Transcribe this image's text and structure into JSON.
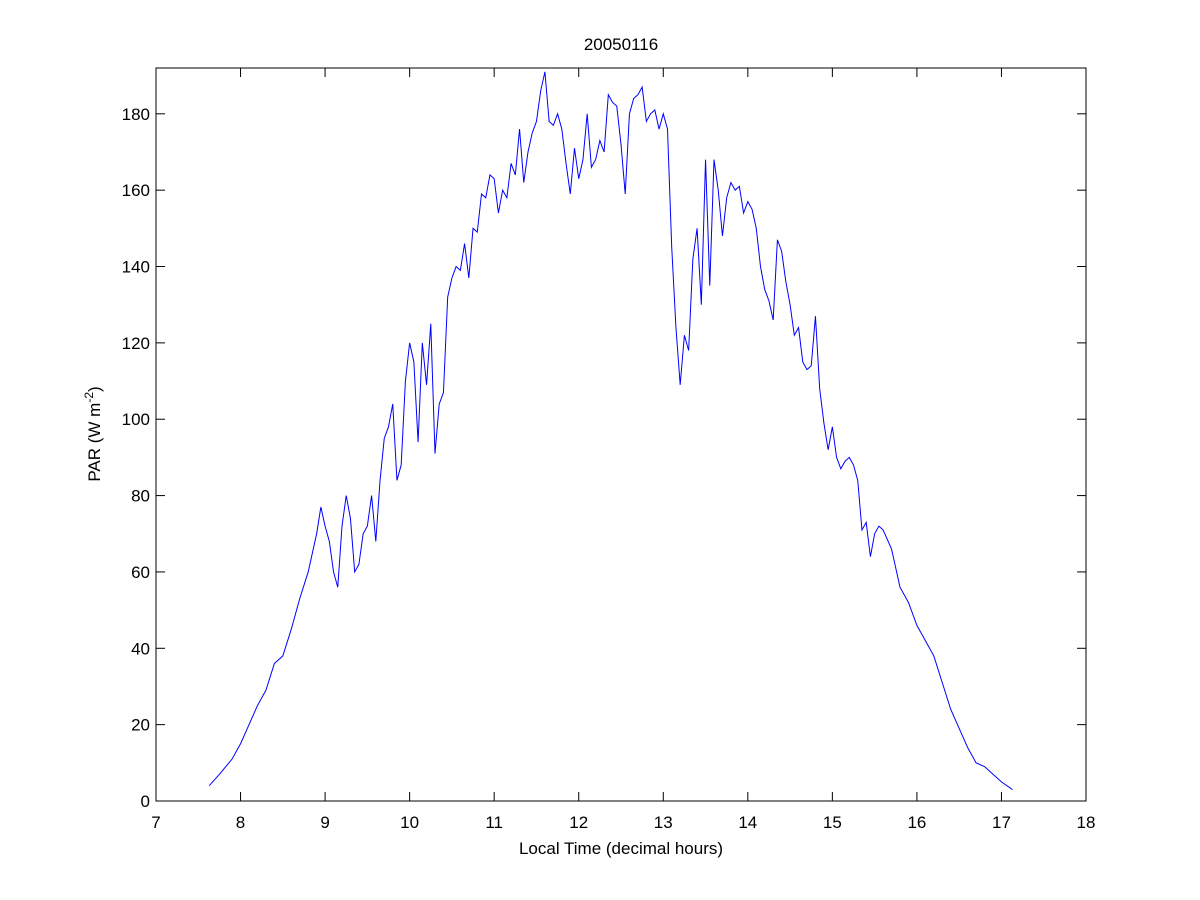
{
  "chart_data": {
    "type": "line",
    "title": "20050116",
    "x_label": "Local Time (decimal hours)",
    "y_label_parts": [
      "PAR (W m",
      "-2",
      ")"
    ],
    "x": [
      7.63,
      7.75,
      7.9,
      8.0,
      8.1,
      8.2,
      8.3,
      8.4,
      8.5,
      8.6,
      8.7,
      8.8,
      8.9,
      8.95,
      9.0,
      9.05,
      9.1,
      9.15,
      9.2,
      9.25,
      9.3,
      9.35,
      9.4,
      9.45,
      9.5,
      9.55,
      9.6,
      9.65,
      9.7,
      9.75,
      9.8,
      9.85,
      9.9,
      9.95,
      10.0,
      10.05,
      10.1,
      10.15,
      10.2,
      10.25,
      10.3,
      10.35,
      10.4,
      10.45,
      10.5,
      10.55,
      10.6,
      10.65,
      10.7,
      10.75,
      10.8,
      10.85,
      10.9,
      10.95,
      11.0,
      11.05,
      11.1,
      11.15,
      11.2,
      11.25,
      11.3,
      11.35,
      11.4,
      11.45,
      11.5,
      11.55,
      11.6,
      11.65,
      11.7,
      11.75,
      11.8,
      11.85,
      11.9,
      11.95,
      12.0,
      12.05,
      12.1,
      12.15,
      12.2,
      12.25,
      12.3,
      12.35,
      12.4,
      12.45,
      12.5,
      12.55,
      12.6,
      12.65,
      12.7,
      12.75,
      12.8,
      12.85,
      12.9,
      12.95,
      13.0,
      13.05,
      13.1,
      13.15,
      13.2,
      13.25,
      13.3,
      13.35,
      13.4,
      13.45,
      13.5,
      13.55,
      13.6,
      13.65,
      13.7,
      13.75,
      13.8,
      13.85,
      13.9,
      13.95,
      14.0,
      14.05,
      14.1,
      14.15,
      14.2,
      14.25,
      14.3,
      14.35,
      14.4,
      14.45,
      14.5,
      14.55,
      14.6,
      14.65,
      14.7,
      14.75,
      14.8,
      14.85,
      14.9,
      14.95,
      15.0,
      15.05,
      15.1,
      15.15,
      15.2,
      15.25,
      15.3,
      15.35,
      15.4,
      15.45,
      15.5,
      15.55,
      15.6,
      15.7,
      15.8,
      15.9,
      16.0,
      16.1,
      16.2,
      16.3,
      16.4,
      16.5,
      16.6,
      16.7,
      16.8,
      16.9,
      17.0,
      17.13
    ],
    "series": [
      {
        "color": "#0000ff",
        "values": [
          4,
          7,
          11,
          15,
          20,
          25,
          29,
          36,
          38,
          45,
          53,
          60,
          70,
          77,
          72,
          68,
          60,
          56,
          72,
          80,
          74,
          60,
          62,
          70,
          72,
          80,
          68,
          84,
          95,
          98,
          104,
          84,
          88,
          110,
          120,
          115,
          94,
          120,
          109,
          125,
          91,
          104,
          107,
          132,
          137,
          140,
          139,
          146,
          137,
          150,
          149,
          159,
          158,
          164,
          163,
          154,
          160,
          158,
          167,
          164,
          176,
          162,
          170,
          175,
          178,
          186,
          191,
          178,
          177,
          180,
          176,
          167,
          159,
          171,
          163,
          168,
          180,
          166,
          168,
          173,
          170,
          185,
          183,
          182,
          172,
          159,
          180,
          184,
          185,
          187,
          178,
          180,
          181,
          176,
          180,
          176,
          145,
          124,
          109,
          122,
          118,
          142,
          150,
          130,
          168,
          135,
          168,
          160,
          148,
          158,
          162,
          160,
          161,
          154,
          157,
          155,
          150,
          140,
          134,
          131,
          126,
          147,
          144,
          136,
          130,
          122,
          124,
          115,
          113,
          114,
          127,
          108,
          99,
          92,
          98,
          90,
          87,
          89,
          90,
          88,
          84,
          71,
          73,
          64,
          70,
          72,
          71,
          66,
          56,
          52,
          46,
          42,
          38,
          31,
          24,
          19,
          14,
          10,
          9,
          7,
          5,
          3
        ]
      }
    ],
    "xlim": [
      7,
      18
    ],
    "xticks": [
      7,
      8,
      9,
      10,
      11,
      12,
      13,
      14,
      15,
      16,
      17,
      18
    ],
    "ylim": [
      0,
      192
    ],
    "yticks": [
      0,
      20,
      40,
      60,
      80,
      100,
      120,
      140,
      160,
      180
    ],
    "grid": false
  }
}
